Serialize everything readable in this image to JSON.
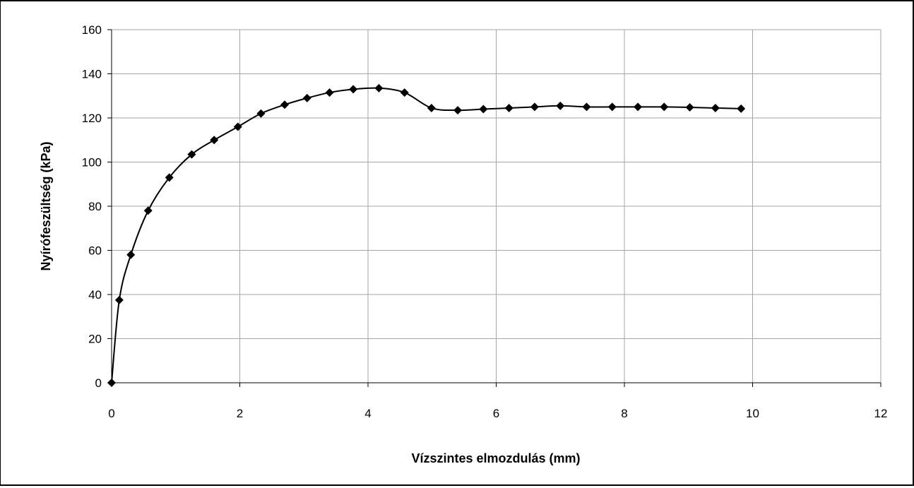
{
  "chart_data": {
    "type": "line",
    "title": "",
    "xlabel": "Vízszintes elmozdulás (mm)",
    "ylabel": "Nyírófeszültség (kPa)",
    "xlim": [
      0,
      12
    ],
    "ylim": [
      0,
      160
    ],
    "xticks": [
      0,
      2,
      4,
      6,
      8,
      10,
      12
    ],
    "yticks": [
      0,
      20,
      40,
      60,
      80,
      100,
      120,
      140,
      160
    ],
    "grid": true,
    "legend": "none",
    "marker": "diamond",
    "line_color": "#000000",
    "grid_color": "#a6a6a6",
    "series": [
      {
        "x": [
          0,
          0.12,
          0.3,
          0.57,
          0.9,
          1.25,
          1.6,
          1.97,
          2.33,
          2.7,
          3.05,
          3.4,
          3.77,
          4.17,
          4.57,
          4.99,
          5.4,
          5.8,
          6.2,
          6.6,
          7.0,
          7.41,
          7.81,
          8.21,
          8.62,
          9.02,
          9.42,
          9.82
        ],
        "y": [
          0,
          37.5,
          58,
          78,
          93,
          103.5,
          110,
          116,
          122,
          126,
          129,
          131.5,
          133,
          133.5,
          131.5,
          124.5,
          123.5,
          124,
          124.5,
          125,
          125.5,
          125,
          125,
          125,
          125,
          124.8,
          124.5,
          124.2
        ]
      }
    ]
  }
}
